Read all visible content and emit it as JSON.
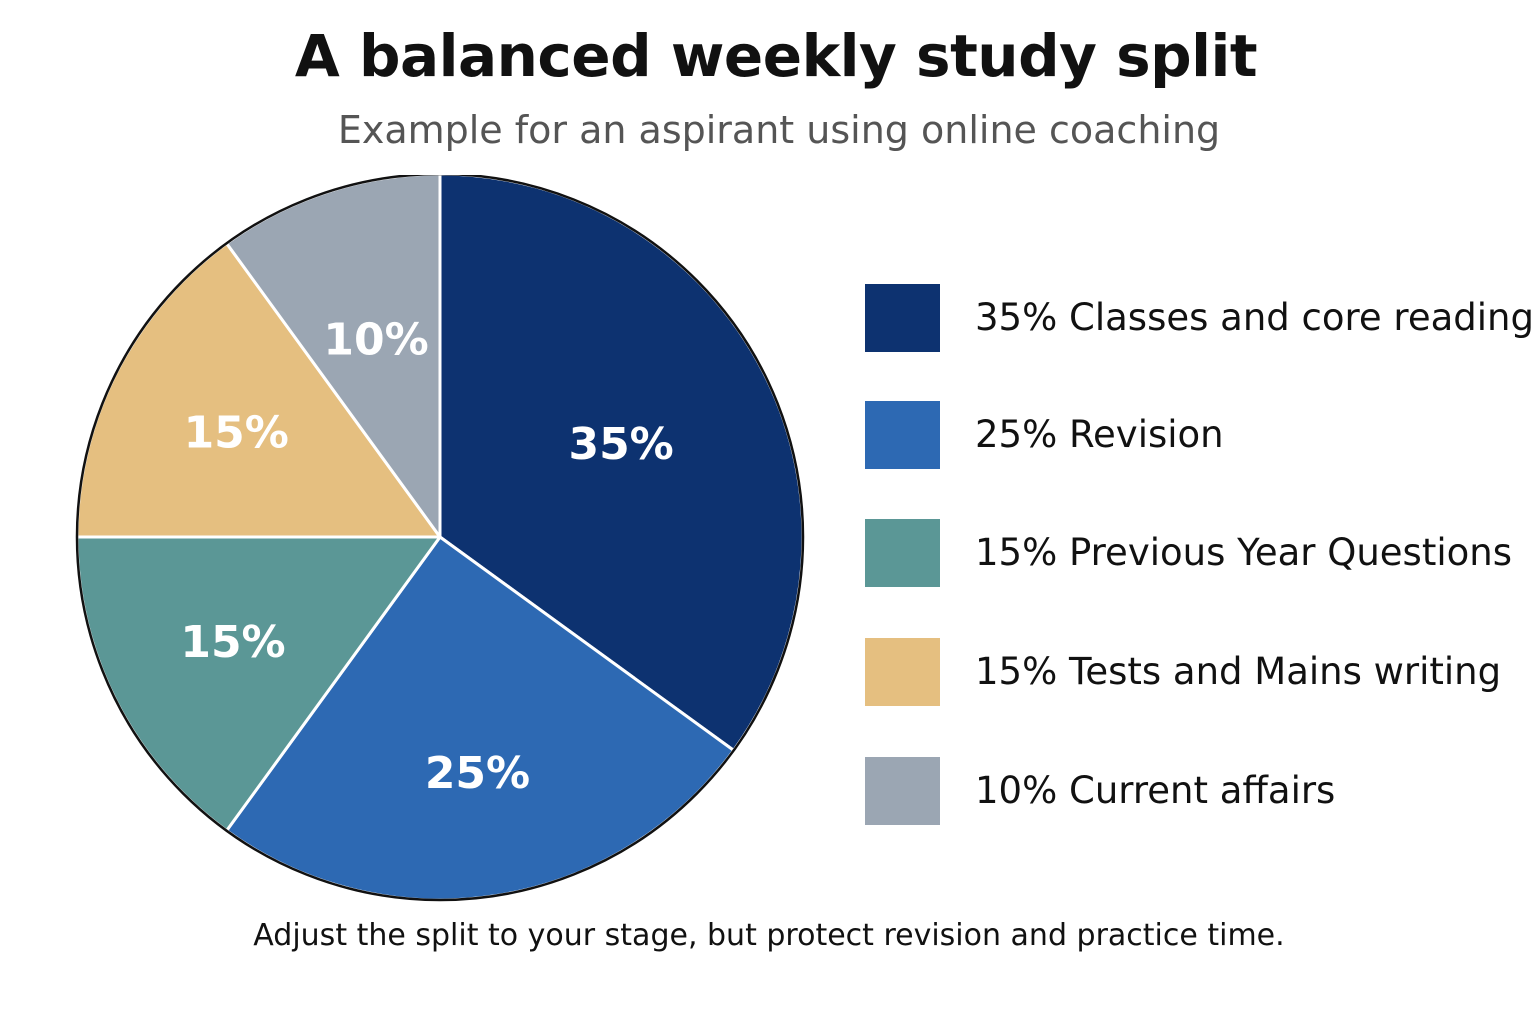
{
  "title": "A balanced weekly study split",
  "subtitle": "Example for an aspirant using online coaching",
  "footnote": "Adjust the split to your stage, but protect revision and practice time.",
  "chart_data": {
    "type": "pie",
    "title": "A balanced weekly study split",
    "subtitle": "Example for an aspirant using online coaching",
    "legend_position": "right",
    "start": "top, clockwise",
    "slices": [
      {
        "label": "35% Classes and core reading",
        "value": 35,
        "slice_label": "35%",
        "color": "#0d3270"
      },
      {
        "label": "25% Revision",
        "value": 25,
        "slice_label": "25%",
        "color": "#2d69b3"
      },
      {
        "label": "15% Previous Year Questions",
        "value": 15,
        "slice_label": "15%",
        "color": "#5b9796"
      },
      {
        "label": "15% Tests and Mains writing",
        "value": 15,
        "slice_label": "15%",
        "color": "#e5bf80"
      },
      {
        "label": "10% Current affairs",
        "value": 10,
        "slice_label": "10%",
        "color": "#9ba6b3"
      }
    ]
  }
}
